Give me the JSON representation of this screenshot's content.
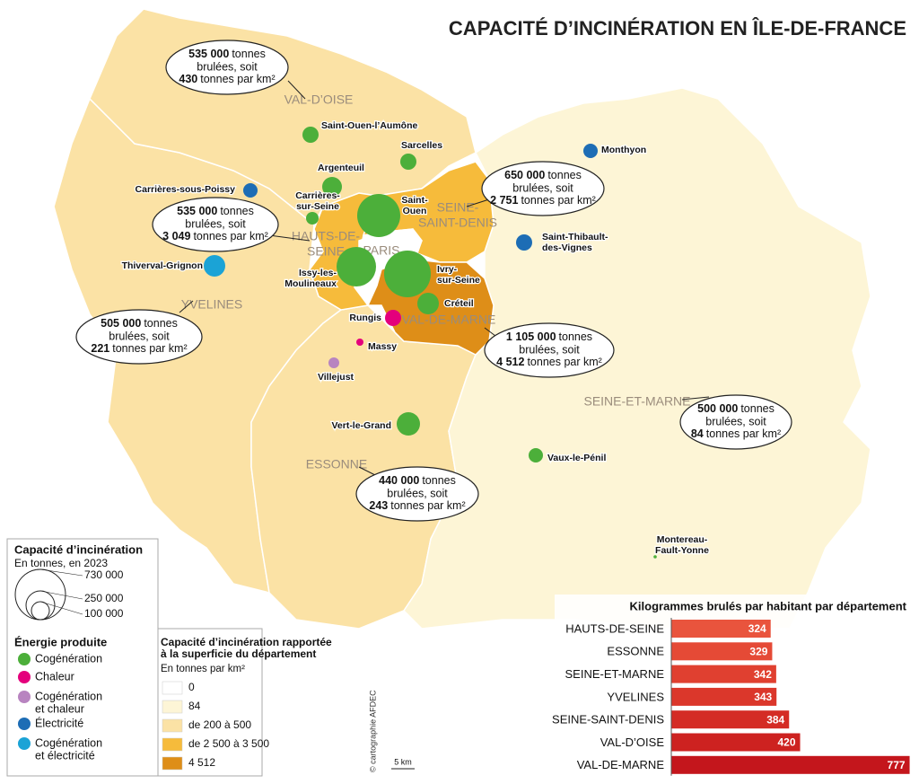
{
  "title": "CAPACITÉ D’INCINÉRATION EN ÎLE-DE-FRANCE",
  "callout_text": {
    "tonnes": "tonnes",
    "burned": "brulées, soit",
    "per_km2": "tonnes par km²"
  },
  "departments": [
    {
      "name_lines": [
        "VAL-D’OISE"
      ],
      "tonnes": "535 000",
      "per_km2": "430"
    },
    {
      "name_lines": [
        "YVELINES"
      ],
      "tonnes": "505 000",
      "per_km2": "221"
    },
    {
      "name_lines": [
        "HAUTS-DE-",
        "SEINE"
      ],
      "tonnes": "535 000",
      "per_km2": "3 049"
    },
    {
      "name_lines": [
        "SEINE-",
        "SAINT-DENIS"
      ],
      "tonnes": "650 000",
      "per_km2": "2 751"
    },
    {
      "name_lines": [
        "PARIS"
      ]
    },
    {
      "name_lines": [
        "VAL-DE-MARNE"
      ],
      "tonnes": "1 105 000",
      "per_km2": "4 512"
    },
    {
      "name_lines": [
        "ESSONNE"
      ],
      "tonnes": "440 000",
      "per_km2": "243"
    },
    {
      "name_lines": [
        "SEINE-ET-MARNE"
      ],
      "tonnes": "500 000",
      "per_km2": "84"
    }
  ],
  "sites": [
    {
      "name_lines": [
        "Saint-Ouen-l’Aumône"
      ],
      "energy": 0
    },
    {
      "name_lines": [
        "Sarcelles"
      ],
      "energy": 0
    },
    {
      "name_lines": [
        "Argenteuil"
      ],
      "energy": 0
    },
    {
      "name_lines": [
        "Carrières-",
        "sur-Seine"
      ],
      "energy": 0
    },
    {
      "name_lines": [
        "Carrières-sous-Poissy"
      ],
      "energy": 3
    },
    {
      "name_lines": [
        "Thiverval-Grignon"
      ],
      "energy": 4
    },
    {
      "name_lines": [
        "Saint-",
        "Ouen"
      ],
      "energy": 0
    },
    {
      "name_lines": [
        "Issy-les-",
        "Moulineaux"
      ],
      "energy": 0
    },
    {
      "name_lines": [
        "Ivry-",
        "sur-Seine"
      ],
      "energy": 0
    },
    {
      "name_lines": [
        "Créteil"
      ],
      "energy": 0
    },
    {
      "name_lines": [
        "Rungis"
      ],
      "energy": 1
    },
    {
      "name_lines": [
        "Massy"
      ],
      "energy": 1
    },
    {
      "name_lines": [
        "Villejust"
      ],
      "energy": 2
    },
    {
      "name_lines": [
        "Vert-le-Grand"
      ],
      "energy": 0
    },
    {
      "name_lines": [
        "Vaux-le-Pénil"
      ],
      "energy": 0
    },
    {
      "name_lines": [
        "Montereau-",
        "Fault-Yonne"
      ],
      "energy": 0
    },
    {
      "name_lines": [
        "Monthyon"
      ],
      "energy": 3
    },
    {
      "name_lines": [
        "Saint-Thibault-",
        "des-Vignes"
      ],
      "energy": 3
    }
  ],
  "size_legend": {
    "title": "Capacité d’incinération",
    "subtitle": "En tonnes, en 2023",
    "labels": [
      "730 000",
      "250 000",
      "100 000"
    ]
  },
  "energy_legend": {
    "title": "Énergie produite",
    "items": [
      {
        "label_lines": [
          "Cogénération"
        ],
        "color": "#4caf3a"
      },
      {
        "label_lines": [
          "Chaleur"
        ],
        "color": "#e4007c"
      },
      {
        "label_lines": [
          "Cogénération",
          "et chaleur"
        ],
        "color": "#b884c0"
      },
      {
        "label_lines": [
          "Électricité"
        ],
        "color": "#1d6db5"
      },
      {
        "label_lines": [
          "Cogénération",
          "et électricité"
        ],
        "color": "#1ba3d6"
      }
    ]
  },
  "density_legend": {
    "title_lines": [
      "Capacité d’incinération rapportée",
      "à la superficie du département"
    ],
    "subtitle": "En tonnes par km²",
    "items": [
      {
        "label": "0",
        "color": "#ffffff"
      },
      {
        "label": "84",
        "color": "#fdf5d6"
      },
      {
        "label": "de 200 à 500",
        "color": "#fbe2a5"
      },
      {
        "label": "de 2 500 à 3 500",
        "color": "#f6bb3b"
      },
      {
        "label": "4 512",
        "color": "#de8e18"
      }
    ]
  },
  "credit": "© cartographie AFDEC",
  "scale": "5 km",
  "chart_data": {
    "type": "bar",
    "title": "Kilogrammes brulés par habitant par département",
    "categories": [
      "HAUTS-DE-SEINE",
      "ESSONNE",
      "SEINE-ET-MARNE",
      "YVELINES",
      "SEINE-SAINT-DENIS",
      "VAL-D’OISE",
      "VAL-DE-MARNE"
    ],
    "values": [
      324,
      329,
      342,
      343,
      384,
      420,
      777
    ],
    "colors": [
      "#e9543d",
      "#e54a36",
      "#e04030",
      "#db372b",
      "#d42c25",
      "#cd2220",
      "#c4161c"
    ],
    "xlim": [
      0,
      790
    ]
  }
}
